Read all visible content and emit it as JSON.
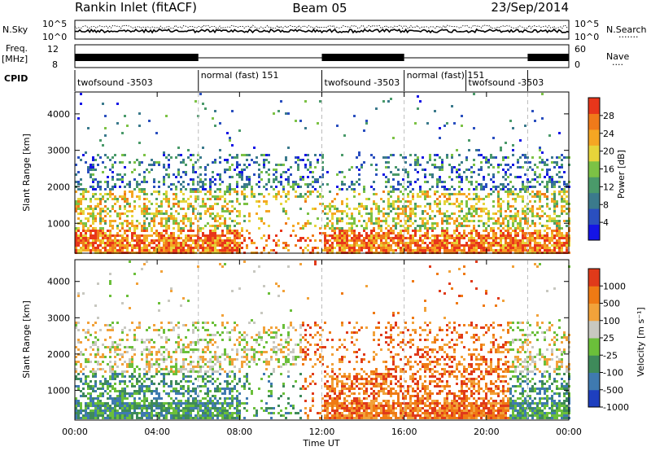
{
  "header": {
    "station": "Rankin Inlet (fitACF)",
    "beam": "Beam 05",
    "date": "23/Sep/2014"
  },
  "top_panels": {
    "nsky_label": "N.Sky",
    "nsky_ticks": [
      "10^5",
      "10^0"
    ],
    "nsearch_label": "N.Search",
    "nsearch_ticks": [
      "10^5",
      "10^0"
    ],
    "freq_label_line1": "Freq.",
    "freq_label_line2": "[MHz]",
    "freq_ticks": [
      "12",
      "8"
    ],
    "nave_label": "Nave",
    "nave_ticks": [
      "60",
      "0"
    ],
    "cpid_label": "CPID",
    "cpid_segments": [
      {
        "start_h": 0,
        "end_h": 6,
        "label": "twofsound -3503"
      },
      {
        "start_h": 6,
        "end_h": 12,
        "label": "normal (fast) 151"
      },
      {
        "start_h": 12,
        "end_h": 16,
        "label": "twofsound -3503"
      },
      {
        "start_h": 16,
        "end_h": 19,
        "label": "normal (fast) 151"
      },
      {
        "start_h": 19,
        "end_h": 22,
        "label": "twofsound -3503"
      },
      {
        "start_h": 22,
        "end_h": 24,
        "label": ""
      }
    ]
  },
  "chart_data": [
    {
      "type": "heatmap",
      "name": "Power",
      "ylabel": "Slant Range [km]",
      "y_ticks": [
        "1000",
        "2000",
        "3000",
        "4000"
      ],
      "xlim_hours": [
        0,
        24
      ],
      "ylim_km": [
        180,
        4600
      ],
      "colorbar_label": "Power [dB]",
      "colorbar_ticks": [
        "4",
        "8",
        "12",
        "16",
        "20",
        "24",
        "28"
      ],
      "colorbar_range": [
        0,
        32
      ],
      "colors": [
        "#1414e6",
        "#2a4fbf",
        "#3b7a8c",
        "#4a9a6a",
        "#7cc245",
        "#e6d43a",
        "#f5a623",
        "#f07a1a",
        "#e8361b"
      ]
    },
    {
      "type": "heatmap",
      "name": "Velocity",
      "ylabel": "Slant Range [km]",
      "y_ticks": [
        "1000",
        "2000",
        "3000",
        "4000"
      ],
      "xlim_hours": [
        0,
        24
      ],
      "ylim_km": [
        180,
        4600
      ],
      "colorbar_label": "Velocity [m s⁻¹]",
      "colorbar_ticks": [
        "1000",
        "500",
        "100",
        "25",
        "-25",
        "-100",
        "-500",
        "-1000"
      ],
      "colors": [
        "#1e3fbf",
        "#3f7ab0",
        "#3e8a5a",
        "#6bbf3a",
        "#c8c8c0",
        "#f2a23a",
        "#ef7a14",
        "#e03a1a"
      ]
    }
  ],
  "x_axis": {
    "label": "Time UT",
    "ticks": [
      "00:00",
      "04:00",
      "08:00",
      "12:00",
      "16:00",
      "20:00",
      "00:00"
    ]
  }
}
